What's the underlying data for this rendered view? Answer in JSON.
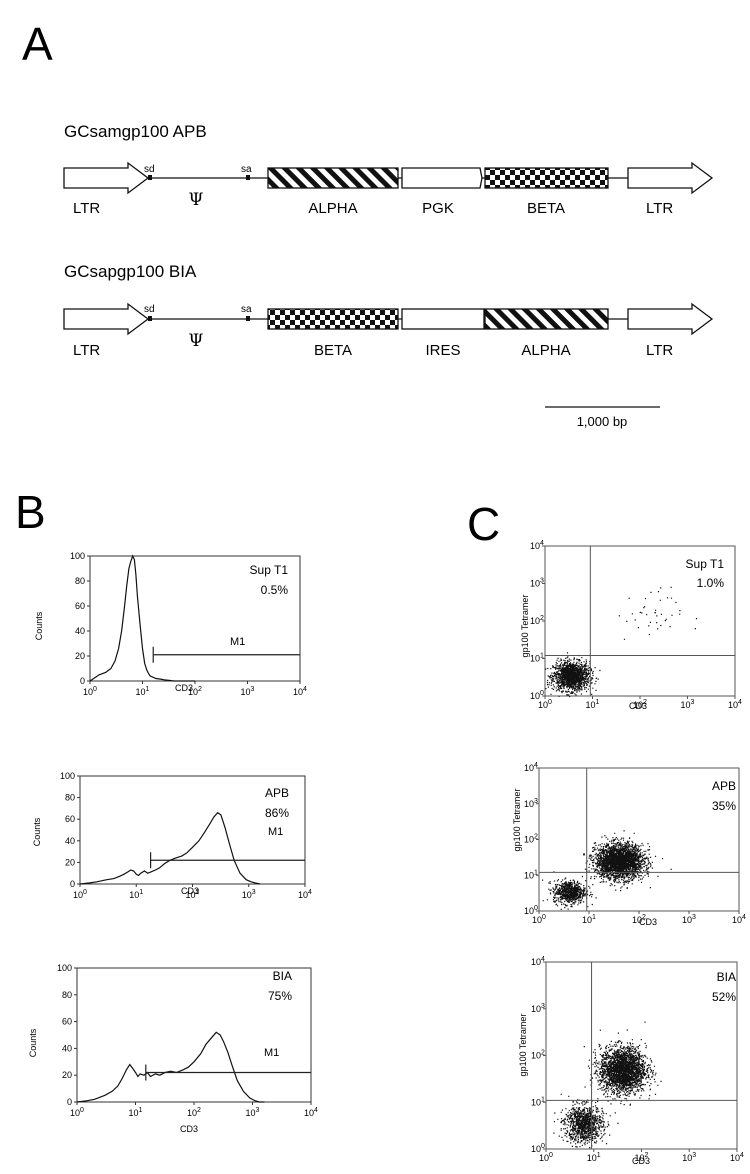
{
  "panel_a": {
    "letter": "A",
    "constructs": [
      {
        "title": "GCsamgp100 APB",
        "left_ltr": "LTR",
        "sd": "sd",
        "sa": "sa",
        "psi": "Ψ",
        "block1": "ALPHA",
        "block2": "PGK",
        "block3": "BETA",
        "right_ltr": "LTR",
        "block1_pattern": "diagonal-stripes",
        "block3_pattern": "checkerboard"
      },
      {
        "title": "GCsapgp100 BIA",
        "left_ltr": "LTR",
        "sd": "sd",
        "sa": "sa",
        "psi": "Ψ",
        "block1": "BETA",
        "block2": "IRES",
        "block3": "ALPHA",
        "right_ltr": "LTR",
        "block1_pattern": "checkerboard",
        "block3_pattern": "diagonal-stripes"
      }
    ],
    "scale_bar": "1,000 bp"
  },
  "panel_b": {
    "letter": "B",
    "histograms": [
      {
        "sample": "Sup T1",
        "percent": "0.5%",
        "gate": "M1"
      },
      {
        "sample": "APB",
        "percent": "86%",
        "gate": "M1"
      },
      {
        "sample": "BIA",
        "percent": "75%",
        "gate": "M1"
      }
    ],
    "ylabel": "Counts",
    "xlabel": "CD3",
    "y_ticks": [
      "0",
      "20",
      "40",
      "60",
      "80",
      "100"
    ],
    "x_tick_base": "10",
    "x_tick_exponents": [
      "0",
      "1",
      "2",
      "3",
      "4"
    ]
  },
  "panel_c": {
    "letter": "C",
    "plots": [
      {
        "sample": "Sup T1",
        "percent": "1.0%"
      },
      {
        "sample": "APB",
        "percent": "35%"
      },
      {
        "sample": "BIA",
        "percent": "52%"
      }
    ],
    "ylabel": "gp100 Tetramer",
    "xlabel": "CD3",
    "tick_base": "10",
    "tick_exponents": [
      "0",
      "1",
      "2",
      "3",
      "4"
    ]
  },
  "chart_data": [
    {
      "type": "line",
      "title": "Sup T1 0.5%",
      "xlabel": "CD3",
      "ylabel": "Counts",
      "x_scale": "log",
      "xlim": [
        1,
        10000
      ],
      "ylim": [
        0,
        100
      ],
      "gate": {
        "label": "M1",
        "from": 16,
        "to": 10000,
        "level": 21
      },
      "x": [
        1,
        1.5,
        2,
        2.5,
        3,
        3.5,
        4,
        4.5,
        5,
        5.5,
        6,
        6.5,
        7,
        7.5,
        8,
        9,
        10,
        11,
        12,
        13,
        14,
        16,
        18,
        22,
        26,
        32,
        40,
        60,
        100
      ],
      "y": [
        0,
        5,
        7,
        10,
        16,
        26,
        40,
        58,
        76,
        90,
        96,
        100,
        97,
        85,
        68,
        45,
        26,
        14,
        9,
        6,
        4,
        3,
        2,
        1.5,
        1,
        0.5,
        0,
        0,
        0
      ]
    },
    {
      "type": "line",
      "title": "APB 86%",
      "xlabel": "CD3",
      "ylabel": "Counts",
      "x_scale": "log",
      "xlim": [
        1,
        10000
      ],
      "ylim": [
        0,
        100
      ],
      "gate": {
        "label": "M1",
        "from": 18,
        "to": 10000,
        "level": 22
      },
      "x": [
        1,
        1.5,
        2,
        3,
        4,
        5,
        6,
        7,
        8,
        9,
        10,
        11,
        12,
        14,
        16,
        18,
        22,
        26,
        32,
        40,
        50,
        65,
        80,
        100,
        130,
        160,
        200,
        240,
        280,
        320,
        380,
        450,
        550,
        700,
        900,
        1100,
        1300,
        1600
      ],
      "y": [
        0,
        1,
        2,
        4,
        5,
        7,
        9,
        11,
        13,
        12,
        9,
        8,
        10,
        12,
        10,
        11,
        13,
        15,
        19,
        22,
        24,
        26,
        29,
        34,
        40,
        47,
        55,
        62,
        66,
        64,
        52,
        38,
        22,
        10,
        4,
        2,
        1,
        0
      ]
    },
    {
      "type": "line",
      "title": "BIA 75%",
      "xlabel": "CD3",
      "ylabel": "Counts",
      "x_scale": "log",
      "xlim": [
        1,
        10000
      ],
      "ylim": [
        0,
        100
      ],
      "gate": {
        "label": "M1",
        "from": 15,
        "to": 10000,
        "level": 22
      },
      "x": [
        1,
        1.5,
        2,
        3,
        4,
        5,
        6,
        7,
        8,
        9,
        10,
        11,
        12,
        14,
        16,
        18,
        22,
        26,
        32,
        40,
        50,
        65,
        80,
        100,
        130,
        160,
        200,
        240,
        280,
        320,
        380,
        450,
        550,
        700,
        900,
        1100,
        1300,
        1600
      ],
      "y": [
        0,
        1,
        2,
        5,
        8,
        12,
        18,
        24,
        28,
        25,
        22,
        19,
        21,
        20,
        22,
        19,
        21,
        20,
        22,
        23,
        22,
        24,
        26,
        30,
        36,
        43,
        48,
        52,
        50,
        45,
        37,
        27,
        16,
        8,
        3,
        1,
        0,
        0
      ]
    },
    {
      "type": "scatter",
      "title": "Sup T1 1.0%",
      "xlabel": "CD3",
      "ylabel": "gp100 Tetramer",
      "x_scale": "log",
      "y_scale": "log",
      "xlim": [
        1,
        10000
      ],
      "ylim": [
        1,
        10000
      ],
      "quadrant_x": 9,
      "quadrant_y": 12,
      "populations": [
        {
          "cx": 3.5,
          "cy": 3.5,
          "spread": 0.19,
          "n": 1500
        },
        {
          "cx": 150,
          "cy": 150,
          "spread": 0.35,
          "n": 40
        }
      ]
    },
    {
      "type": "scatter",
      "title": "APB 35%",
      "xlabel": "CD3",
      "ylabel": "gp100 Tetramer",
      "x_scale": "log",
      "y_scale": "log",
      "xlim": [
        1,
        10000
      ],
      "ylim": [
        1,
        10000
      ],
      "quadrant_x": 9,
      "quadrant_y": 12,
      "populations": [
        {
          "cx": 4,
          "cy": 3.5,
          "spread": 0.16,
          "n": 700
        },
        {
          "cx": 40,
          "cy": 25,
          "spread": 0.24,
          "n": 2600
        }
      ]
    },
    {
      "type": "scatter",
      "title": "BIA 52%",
      "xlabel": "CD3",
      "ylabel": "gp100 Tetramer",
      "x_scale": "log",
      "y_scale": "log",
      "xlim": [
        1,
        10000
      ],
      "ylim": [
        1,
        10000
      ],
      "quadrant_x": 9,
      "quadrant_y": 11,
      "populations": [
        {
          "cx": 6,
          "cy": 3.5,
          "spread": 0.2,
          "n": 1000
        },
        {
          "cx": 40,
          "cy": 50,
          "spread": 0.24,
          "n": 2400
        }
      ]
    }
  ]
}
